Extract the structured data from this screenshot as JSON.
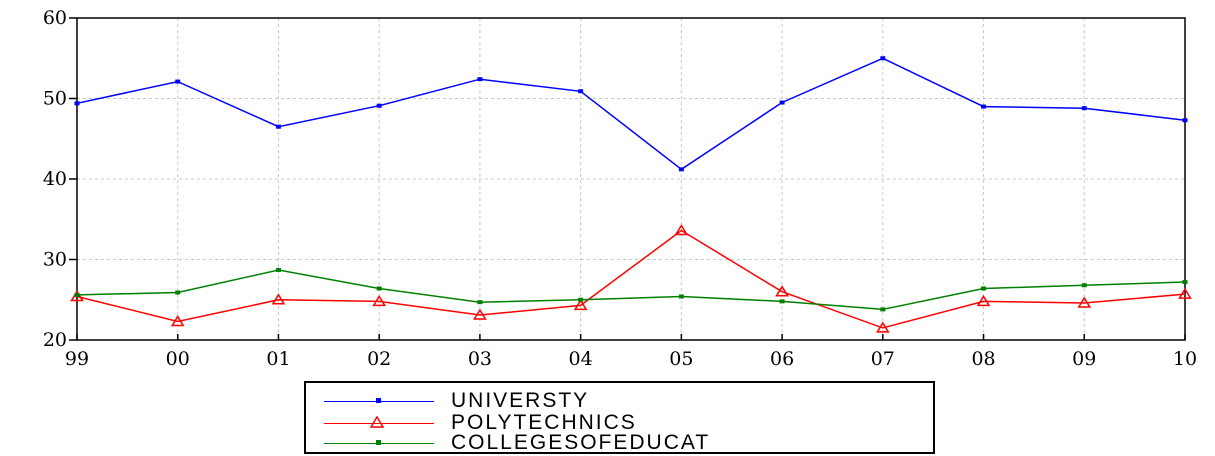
{
  "chart_data": {
    "type": "line",
    "categories": [
      "99",
      "00",
      "01",
      "02",
      "03",
      "04",
      "05",
      "06",
      "07",
      "08",
      "09",
      "10"
    ],
    "ylim": [
      20,
      60
    ],
    "yticks": [
      "20",
      "30",
      "40",
      "50",
      "60"
    ],
    "grid": true,
    "legend_position": "bottom",
    "series": [
      {
        "name": "UNIVERSTY",
        "color": "#0000ff",
        "marker": "square",
        "values": [
          49.4,
          52.1,
          46.5,
          49.1,
          52.4,
          50.9,
          41.2,
          49.5,
          55.0,
          49.0,
          48.8,
          47.3
        ]
      },
      {
        "name": "POLYTECHNICS",
        "color": "#ff0000",
        "marker": "triangle",
        "values": [
          25.4,
          22.3,
          25.0,
          24.8,
          23.1,
          24.3,
          33.6,
          26.0,
          21.5,
          24.8,
          24.6,
          25.7
        ]
      },
      {
        "name": "COLLEGESOFEDUCAT",
        "color": "#008000",
        "marker": "square",
        "values": [
          25.6,
          25.9,
          28.7,
          26.4,
          24.7,
          25.0,
          25.4,
          24.8,
          23.8,
          26.4,
          26.8,
          27.2
        ]
      }
    ]
  }
}
